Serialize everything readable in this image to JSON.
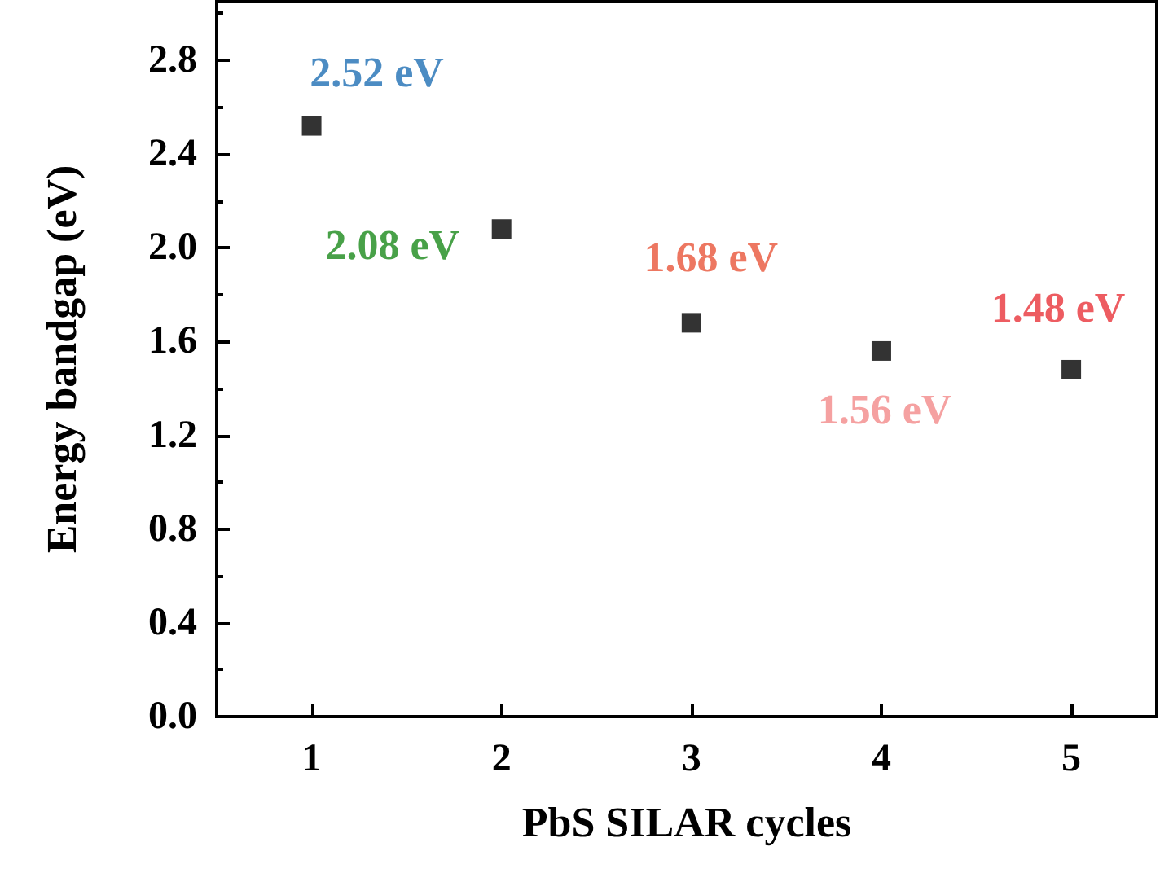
{
  "chart_data": {
    "type": "scatter",
    "xlabel": "PbS SILAR cycles",
    "ylabel": "Energy bandgap (eV)",
    "x": [
      1,
      2,
      3,
      4,
      5
    ],
    "series": [
      {
        "color": "#000000",
        "values": [
          2.52,
          2.08,
          1.68,
          1.56,
          1.48
        ],
        "value_labels": [
          "2.52 eV",
          "2.08 eV",
          "1.68 eV",
          "1.56 eV",
          "1.48 eV"
        ]
      }
    ],
    "xlim": [
      0.5,
      5.45
    ],
    "xticks": [
      1,
      2,
      3,
      4,
      5
    ],
    "ylim": [
      0,
      3.05
    ],
    "yticks": [
      {
        "value": 0,
        "label": "0.0"
      },
      0.4,
      0.8,
      1.2,
      1.6,
      {
        "value": 2,
        "label": "2.0"
      },
      2.4,
      2.8
    ],
    "marker": "square",
    "grid": false
  }
}
